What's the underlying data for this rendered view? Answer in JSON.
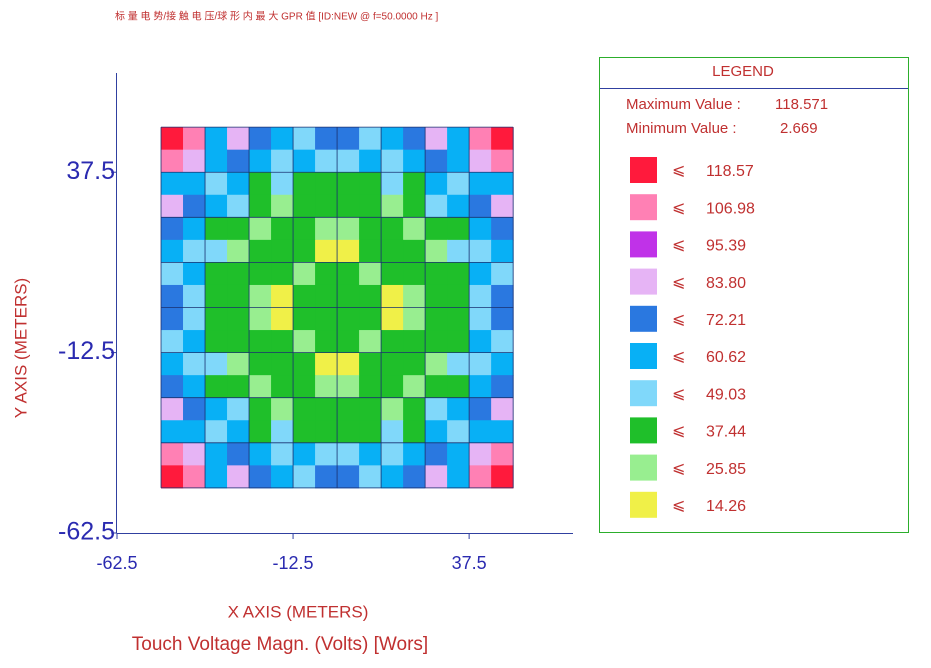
{
  "chart_data": {
    "type": "heatmap",
    "title": "标 量 电 势/接 触 电 压/球 形 内 最 大 GPR 值 [ID:NEW   @  f=50.0000 Hz ]",
    "subtitle": "Touch Voltage Magn. (Volts) [Wors]",
    "x_label": "X AXIS  (METERS)",
    "y_label": "Y AXIS (METERS)",
    "xlim": [
      -62.5,
      67
    ],
    "ylim": [
      -62.5,
      65
    ],
    "xticks": [
      -62.5,
      -12.5,
      37.5
    ],
    "yticks": [
      -62.5,
      -12.5,
      37.5
    ],
    "x_extent": [
      -50,
      50
    ],
    "y_extent": [
      -50,
      50
    ],
    "legend": {
      "title": "LEGEND",
      "max_label": "Maximum Value :",
      "max_value": 118.571,
      "min_label": "Minimum Value :",
      "min_value": 2.669,
      "relation": "⩽",
      "levels": [
        118.57,
        106.98,
        95.39,
        83.8,
        72.21,
        60.62,
        49.03,
        37.44,
        25.85,
        14.26
      ],
      "level_labels": [
        "118.57",
        "106.98",
        "95.39",
        "83.80",
        "72.21",
        "60.62",
        "49.03",
        "37.44",
        "25.85",
        "14.26"
      ],
      "colors": [
        "#ff1a3c",
        "#ff80b4",
        "#c032e8",
        "#e6b4f5",
        "#2a78e0",
        "#08b0f5",
        "#80d8fa",
        "#1fbf2a",
        "#98ee90",
        "#f0f048"
      ]
    },
    "z": [
      [
        115,
        100,
        55,
        80,
        70,
        55,
        45,
        70,
        70,
        45,
        55,
        70,
        80,
        55,
        100,
        115
      ],
      [
        100,
        80,
        55,
        70,
        55,
        45,
        55,
        45,
        45,
        55,
        45,
        55,
        70,
        55,
        80,
        100
      ],
      [
        55,
        55,
        45,
        55,
        35,
        45,
        35,
        35,
        35,
        35,
        45,
        35,
        55,
        45,
        55,
        55
      ],
      [
        80,
        70,
        55,
        45,
        35,
        20,
        35,
        35,
        35,
        35,
        20,
        35,
        45,
        55,
        70,
        80
      ],
      [
        70,
        55,
        35,
        35,
        20,
        35,
        35,
        20,
        20,
        35,
        35,
        20,
        35,
        35,
        55,
        70
      ],
      [
        55,
        45,
        45,
        20,
        35,
        35,
        35,
        10,
        10,
        35,
        35,
        35,
        20,
        45,
        45,
        55
      ],
      [
        45,
        55,
        35,
        35,
        35,
        35,
        20,
        35,
        35,
        20,
        35,
        35,
        35,
        35,
        55,
        45
      ],
      [
        70,
        45,
        35,
        35,
        20,
        10,
        35,
        35,
        35,
        35,
        10,
        20,
        35,
        35,
        45,
        70
      ],
      [
        70,
        45,
        35,
        35,
        20,
        10,
        35,
        35,
        35,
        35,
        10,
        20,
        35,
        35,
        45,
        70
      ],
      [
        45,
        55,
        35,
        35,
        35,
        35,
        20,
        35,
        35,
        20,
        35,
        35,
        35,
        35,
        55,
        45
      ],
      [
        55,
        45,
        45,
        20,
        35,
        35,
        35,
        10,
        10,
        35,
        35,
        35,
        20,
        45,
        45,
        55
      ],
      [
        70,
        55,
        35,
        35,
        20,
        35,
        35,
        20,
        20,
        35,
        35,
        20,
        35,
        35,
        55,
        70
      ],
      [
        80,
        70,
        55,
        45,
        35,
        20,
        35,
        35,
        35,
        35,
        20,
        35,
        45,
        55,
        70,
        80
      ],
      [
        55,
        55,
        45,
        55,
        35,
        45,
        35,
        35,
        35,
        35,
        45,
        35,
        55,
        45,
        55,
        55
      ],
      [
        100,
        80,
        55,
        70,
        55,
        45,
        55,
        45,
        45,
        55,
        45,
        55,
        70,
        55,
        80,
        100
      ],
      [
        115,
        100,
        55,
        80,
        70,
        55,
        45,
        70,
        70,
        45,
        55,
        70,
        80,
        55,
        100,
        115
      ]
    ]
  }
}
